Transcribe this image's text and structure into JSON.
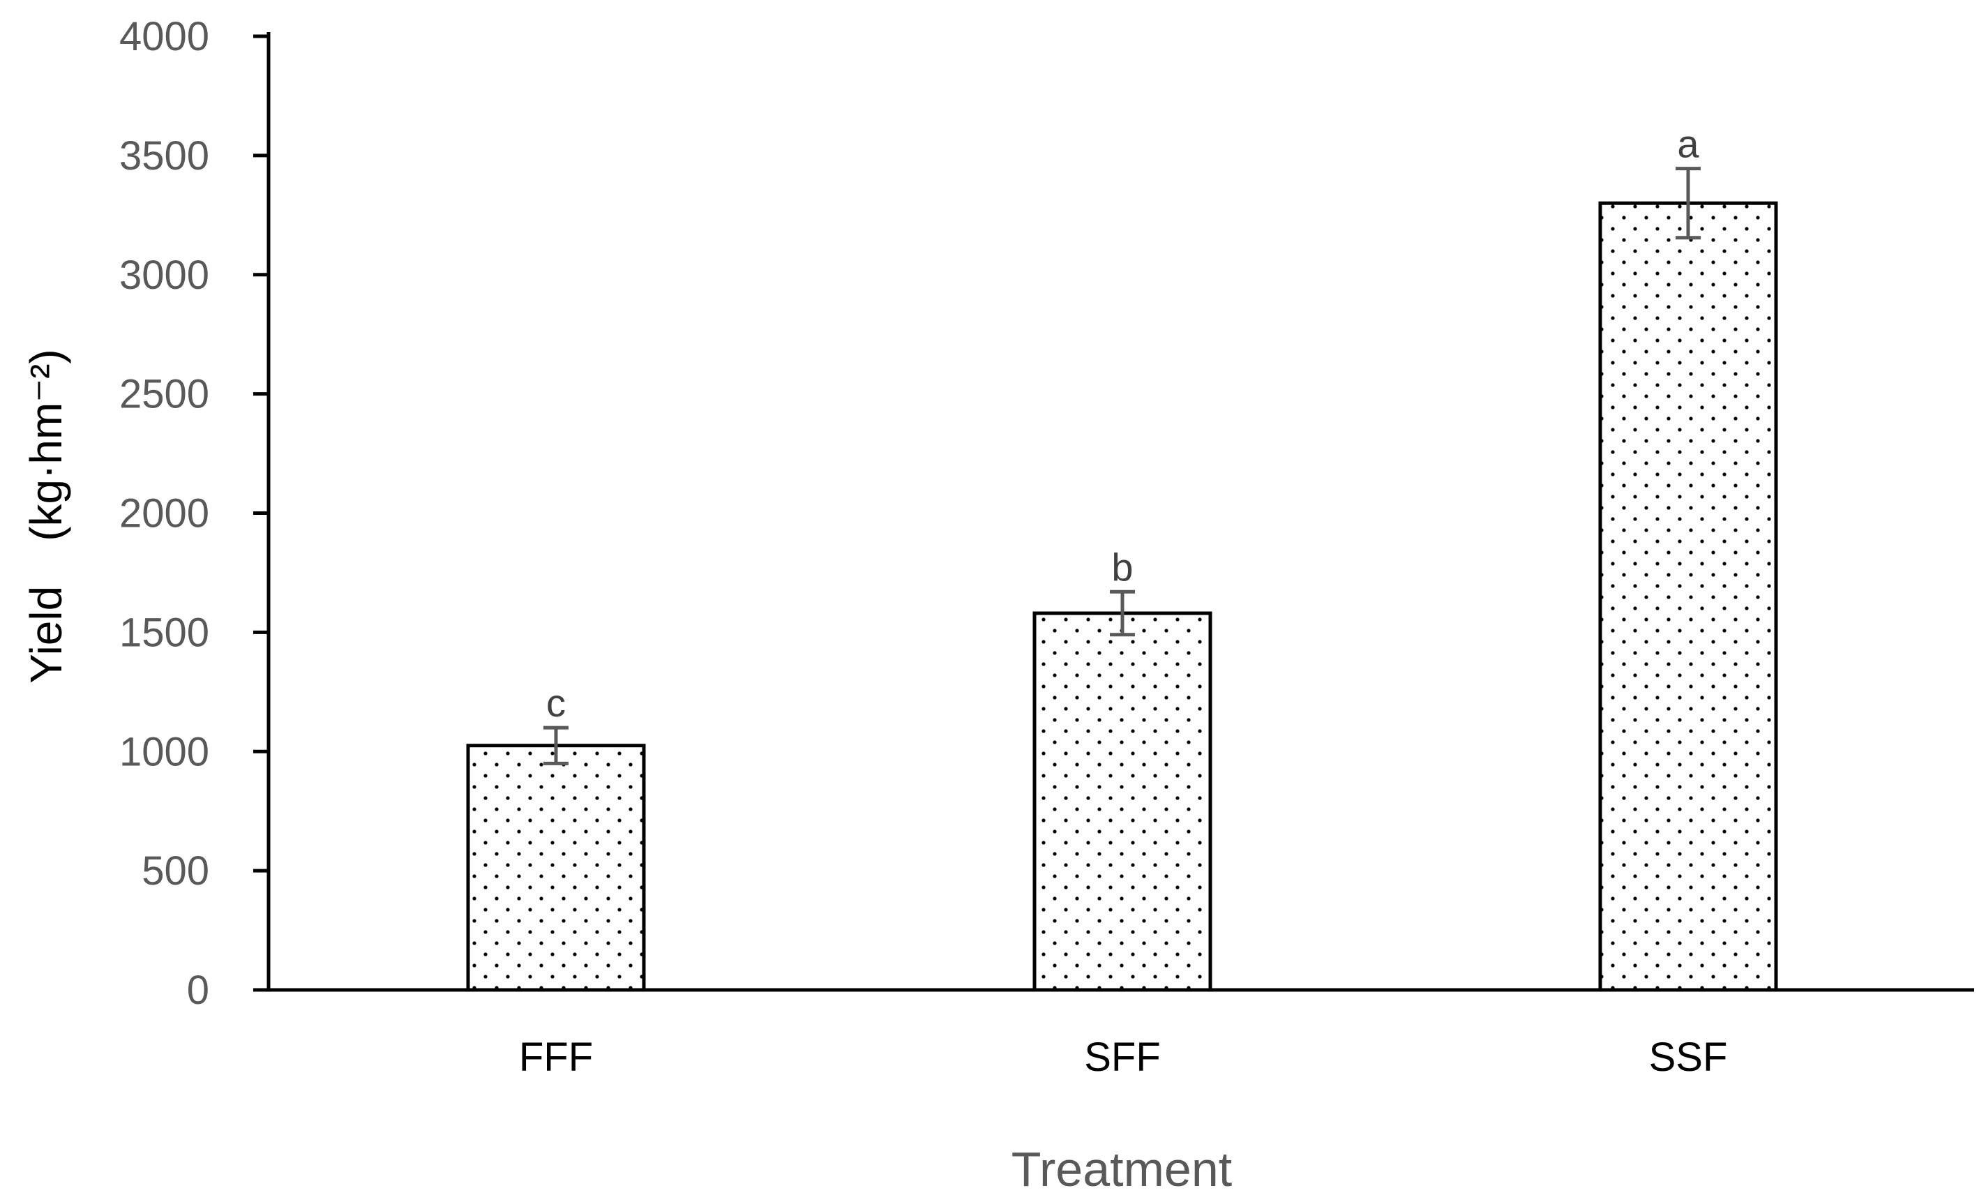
{
  "chart_data": {
    "type": "bar",
    "title": "",
    "xlabel": "Treatment",
    "ylabel": "Yield　(kg·hm⁻²)",
    "ylim": [
      0,
      4000
    ],
    "yticks": [
      0,
      500,
      1000,
      1500,
      2000,
      2500,
      3000,
      3500,
      4000
    ],
    "ytick_labels": [
      "0",
      "500",
      "1000",
      "1500",
      "2000",
      "2500",
      "3000",
      "3500",
      "4000"
    ],
    "categories": [
      "FFF",
      "SFF",
      "SSF"
    ],
    "values": [
      1025,
      1580,
      3300
    ],
    "errors": [
      75,
      90,
      145
    ],
    "significance_labels": [
      "c",
      "b",
      "a"
    ],
    "bar_pattern": "dotted",
    "grid": false,
    "legend": false
  },
  "colors": {
    "axis": "#000000",
    "bar_fill": "#ffffff",
    "bar_edge": "#000000",
    "dots": "#000000",
    "error_bar": "#595959",
    "tick_text": "#595959"
  }
}
